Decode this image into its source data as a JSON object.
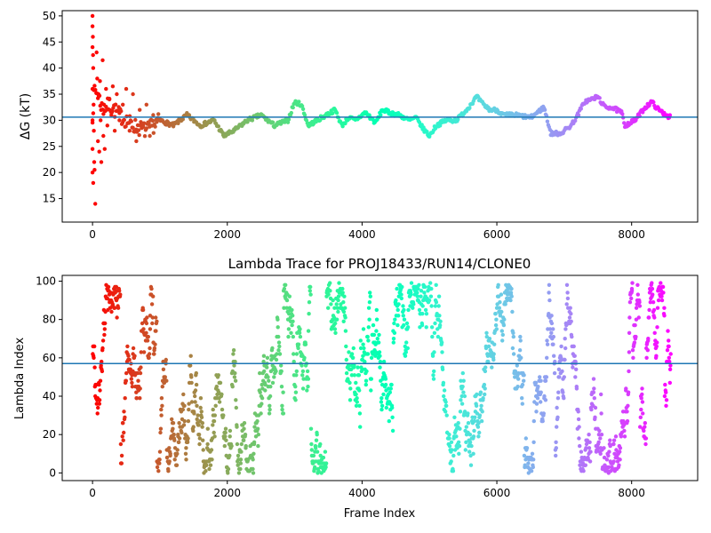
{
  "figure": {
    "background": "#ffffff"
  },
  "chart_data": [
    {
      "id": "top",
      "type": "scatter",
      "title": "",
      "xlabel": "",
      "ylabel": "ΔG (kT)",
      "xlim": [
        -450,
        8980
      ],
      "ylim": [
        10.5,
        51
      ],
      "xticks": [
        0,
        2000,
        4000,
        6000,
        8000
      ],
      "yticks": [
        15,
        20,
        25,
        30,
        35,
        40,
        45,
        50
      ],
      "grid": false,
      "frames": 8580,
      "colormap": "rainbow (red at frame 0 → violet at last frame)",
      "hline": {
        "y": 30.6,
        "color": "#1f77b4"
      },
      "trace_points": [
        [
          0,
          31
        ],
        [
          30,
          36
        ],
        [
          80,
          35
        ],
        [
          150,
          32
        ],
        [
          250,
          33
        ],
        [
          400,
          31
        ],
        [
          600,
          29
        ],
        [
          800,
          28
        ],
        [
          1000,
          30
        ],
        [
          1200,
          29
        ],
        [
          1400,
          31
        ],
        [
          1600,
          29
        ],
        [
          1800,
          30
        ],
        [
          1950,
          27
        ],
        [
          2100,
          28
        ],
        [
          2300,
          30
        ],
        [
          2500,
          31
        ],
        [
          2700,
          29
        ],
        [
          2900,
          30
        ],
        [
          3000,
          33.5
        ],
        [
          3100,
          33
        ],
        [
          3200,
          29
        ],
        [
          3400,
          30.5
        ],
        [
          3600,
          32
        ],
        [
          3700,
          29
        ],
        [
          3800,
          30.5
        ],
        [
          3900,
          30
        ],
        [
          4050,
          31.5
        ],
        [
          4200,
          29.5
        ],
        [
          4300,
          32
        ],
        [
          4400,
          31.5
        ],
        [
          4550,
          31
        ],
        [
          4700,
          30
        ],
        [
          4800,
          30.5
        ],
        [
          4900,
          28.5
        ],
        [
          5000,
          27
        ],
        [
          5100,
          29
        ],
        [
          5250,
          30
        ],
        [
          5400,
          30
        ],
        [
          5550,
          32
        ],
        [
          5700,
          34.5
        ],
        [
          5800,
          33
        ],
        [
          5900,
          32
        ],
        [
          6000,
          32
        ],
        [
          6100,
          31
        ],
        [
          6300,
          31
        ],
        [
          6500,
          30.5
        ],
        [
          6700,
          32.5
        ],
        [
          6800,
          27.5
        ],
        [
          6950,
          27.5
        ],
        [
          7100,
          29
        ],
        [
          7200,
          31
        ],
        [
          7300,
          33.5
        ],
        [
          7500,
          34.5
        ],
        [
          7600,
          32.5
        ],
        [
          7700,
          32.5
        ],
        [
          7850,
          31.5
        ],
        [
          7900,
          29
        ],
        [
          8050,
          30
        ],
        [
          8200,
          32.5
        ],
        [
          8300,
          33.5
        ],
        [
          8400,
          32
        ],
        [
          8580,
          30.5
        ]
      ],
      "early_points": [
        [
          0,
          50
        ],
        [
          0,
          48
        ],
        [
          5,
          46
        ],
        [
          0,
          44
        ],
        [
          8,
          42.5
        ],
        [
          10,
          40
        ],
        [
          0,
          36
        ],
        [
          15,
          33
        ],
        [
          0,
          30
        ],
        [
          20,
          28
        ],
        [
          0,
          24.5
        ],
        [
          25,
          22
        ],
        [
          0,
          20
        ],
        [
          30,
          20.5
        ],
        [
          10,
          18
        ],
        [
          40,
          14
        ],
        [
          60,
          43
        ],
        [
          70,
          38
        ],
        [
          80,
          26
        ],
        [
          90,
          35
        ],
        [
          100,
          24
        ],
        [
          110,
          37.5
        ],
        [
          120,
          30
        ],
        [
          130,
          22
        ],
        [
          150,
          41.5
        ],
        [
          160,
          27
        ],
        [
          170,
          33
        ],
        [
          180,
          24.5
        ],
        [
          200,
          36
        ],
        [
          220,
          29
        ],
        [
          250,
          34
        ],
        [
          280,
          31
        ],
        [
          300,
          36.5
        ],
        [
          330,
          28
        ],
        [
          360,
          35
        ],
        [
          400,
          30
        ],
        [
          450,
          33
        ],
        [
          500,
          36
        ],
        [
          550,
          28
        ],
        [
          600,
          35
        ],
        [
          650,
          26
        ],
        [
          700,
          32
        ],
        [
          750,
          29
        ],
        [
          800,
          33
        ],
        [
          850,
          27
        ],
        [
          900,
          31
        ]
      ]
    },
    {
      "id": "bottom",
      "type": "scatter",
      "title": "Lambda Trace for PROJ18433/RUN14/CLONE0",
      "xlabel": "Frame Index",
      "ylabel": "Lambda Index",
      "xlim": [
        -450,
        8980
      ],
      "ylim": [
        -4,
        103
      ],
      "xticks": [
        0,
        2000,
        4000,
        6000,
        8000
      ],
      "yticks": [
        0,
        20,
        40,
        60,
        80,
        100
      ],
      "grid": false,
      "frames": 8580,
      "colormap": "rainbow (red at frame 0 → violet at last frame)",
      "hline": {
        "y": 57,
        "color": "#1f77b4"
      },
      "values_range": [
        0,
        99
      ]
    }
  ]
}
